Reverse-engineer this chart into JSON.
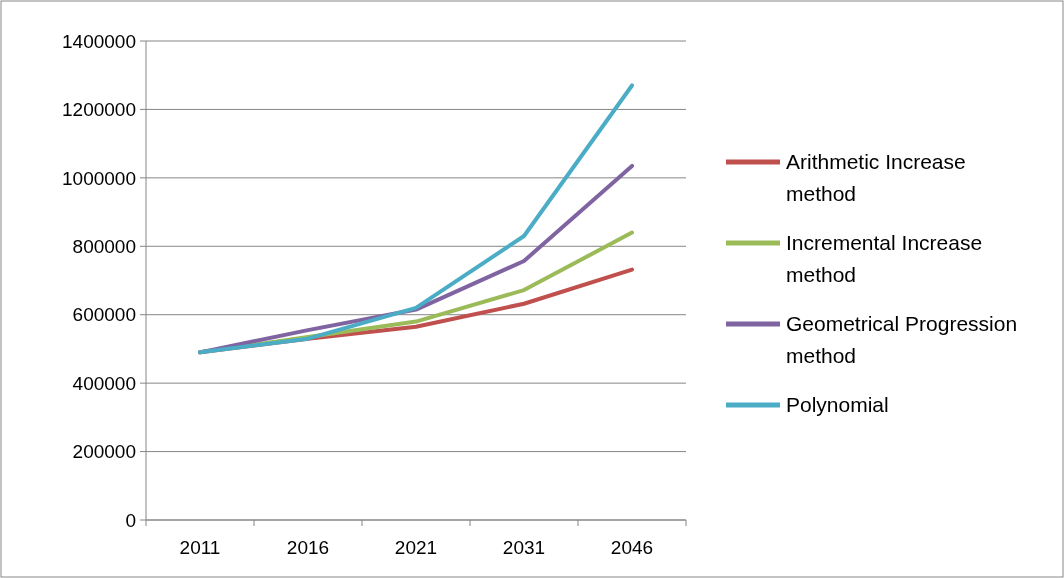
{
  "chart_data": {
    "type": "line",
    "categories": [
      "2011",
      "2016",
      "2021",
      "2031",
      "2046"
    ],
    "series": [
      {
        "name": "Arithmetic Increase method",
        "color": "#c0504d",
        "values": [
          490000,
          530000,
          565000,
          632000,
          732000
        ]
      },
      {
        "name": "Incremental Increase method",
        "color": "#9bbb59",
        "values": [
          490000,
          535000,
          580000,
          672000,
          840000
        ]
      },
      {
        "name": "Geometrical Progression method",
        "color": "#8064a2",
        "values": [
          490000,
          555000,
          615000,
          757000,
          1035000
        ]
      },
      {
        "name": "Polynomial",
        "color": "#4bacc6",
        "values": [
          490000,
          530000,
          620000,
          830000,
          1270000
        ]
      }
    ],
    "ylim": [
      0,
      1400000
    ],
    "yticks": [
      0,
      200000,
      400000,
      600000,
      800000,
      1000000,
      1200000,
      1400000
    ],
    "grid": "y",
    "legend": "right",
    "marker": "none",
    "line_style": "solid"
  }
}
